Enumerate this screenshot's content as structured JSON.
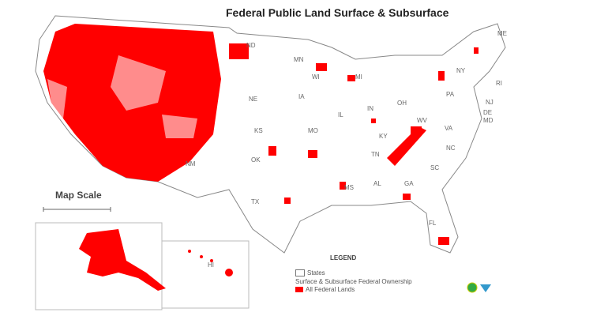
{
  "title": "Federal Public Land Surface & Subsurface",
  "map_scale_label": "Map Scale",
  "legend": {
    "title": "LEGEND",
    "states_label": "States",
    "ownership_label": "Surface & Subsurface Federal Ownership",
    "federal_label": "All Federal Lands"
  },
  "colors": {
    "federal": "#ff0000",
    "states": "#ffffff",
    "border": "#888888"
  },
  "state_labels": [
    "ND",
    "MN",
    "WI",
    "MI",
    "ME",
    "NY",
    "PA",
    "RI",
    "NJ",
    "DE",
    "MD",
    "OH",
    "IN",
    "IL",
    "IA",
    "NE",
    "KS",
    "MO",
    "KY",
    "WV",
    "VA",
    "TN",
    "NC",
    "SC",
    "GA",
    "AL",
    "MS",
    "OK",
    "TX",
    "NM",
    "FL",
    "HI"
  ]
}
